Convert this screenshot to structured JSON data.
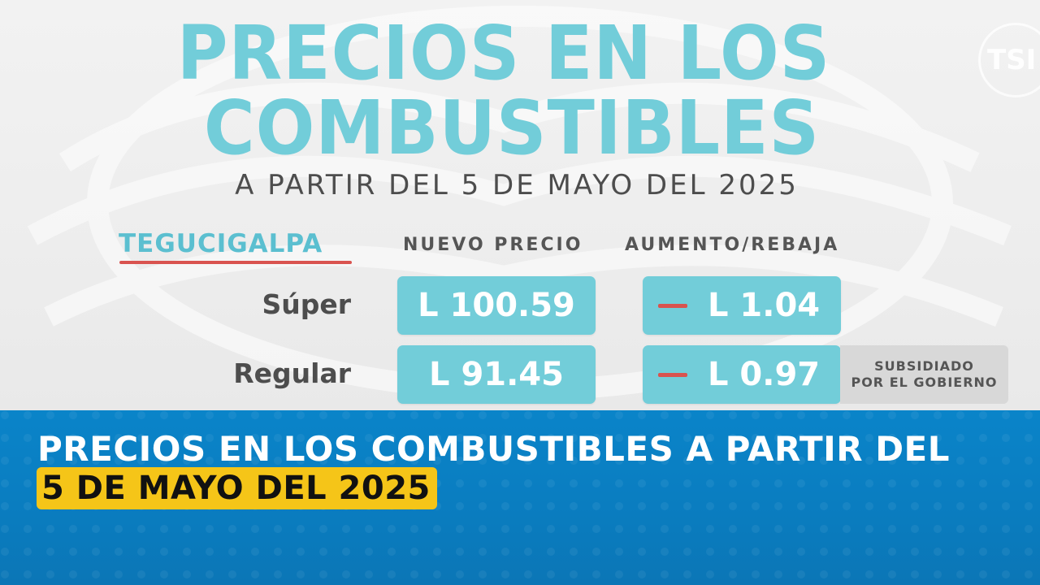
{
  "slide": {
    "title_line1": "PRECIOS EN LOS",
    "title_line2": "COMBUSTIBLES",
    "subtitle": "A PARTIR DEL 5 DE MAYO DEL 2025",
    "city": "TEGUCIGALPA",
    "col_new_price": "NUEVO PRECIO",
    "col_change": "AUMENTO/REBAJA",
    "rows": [
      {
        "fuel": "Súper",
        "price": "L 100.59",
        "change": "L 1.04"
      },
      {
        "fuel": "Regular",
        "price": "L 91.45",
        "change": "L 0.97"
      }
    ],
    "subsidy_line1": "SUBSIDIADO",
    "subsidy_line2": "POR EL GOBIERNO",
    "logo_text": "TSI"
  },
  "banner": {
    "line1": "PRECIOS EN LOS COMBUSTIBLES A PARTIR DEL",
    "line2": "5 DE MAYO DEL 2025"
  },
  "colors": {
    "accent_teal": "#72cdd9",
    "underline_red": "#d9534f",
    "banner_blue": "#0a84c9",
    "highlight_yellow": "#f5c518"
  }
}
